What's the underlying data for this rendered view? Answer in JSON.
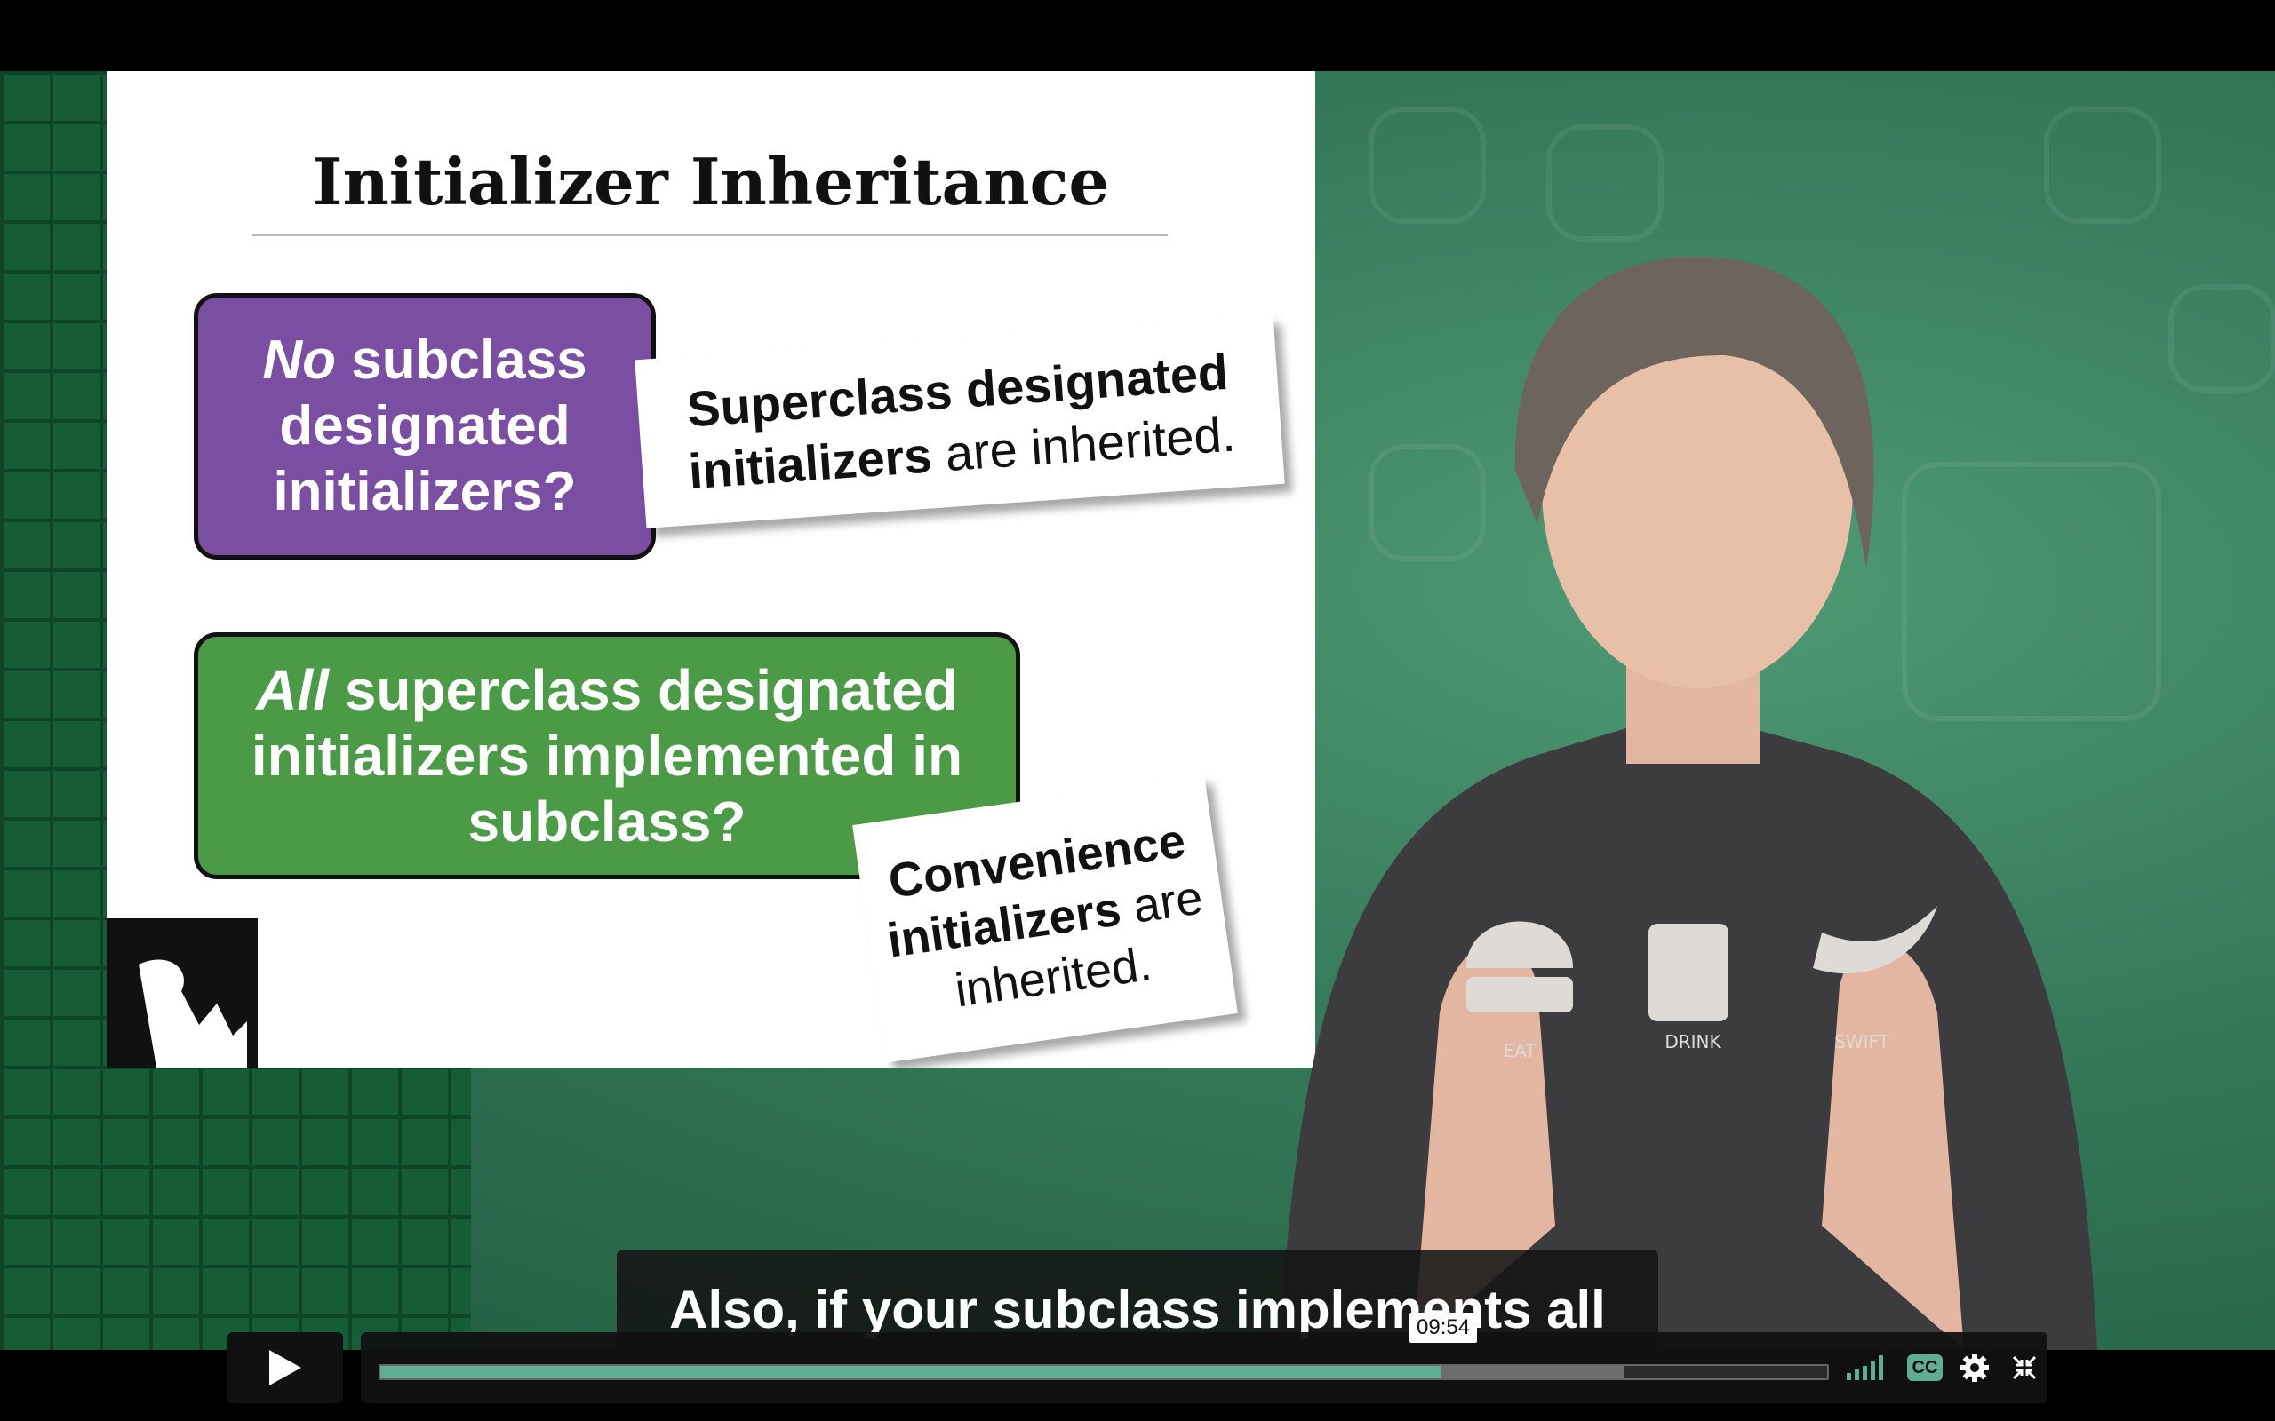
{
  "slide": {
    "title": "Initializer Inheritance",
    "box_purple": {
      "em": "No",
      "rest": " subclass designated initializers?"
    },
    "note_1": {
      "bold": "Superclass designated initializers",
      "rest": " are inherited."
    },
    "box_green": {
      "em": "All",
      "rest": " superclass designated initializers implemented in subclass?"
    },
    "note_2": {
      "bold": "Convenience initializers",
      "rest": " are inherited."
    }
  },
  "shirt": {
    "eat": "EAT",
    "drink": "DRINK",
    "swift": "SWIFT"
  },
  "caption": {
    "text": "Also, if your subclass implements all"
  },
  "player": {
    "hover_time": "09:54",
    "cc_label": "CC",
    "progress_fraction": 0.733,
    "buffered_fraction": 0.86,
    "accent_color": "#5fad95"
  },
  "icons": [
    "play-icon",
    "signal-icon",
    "cc-icon",
    "gear-icon",
    "fullscreen-icon"
  ]
}
